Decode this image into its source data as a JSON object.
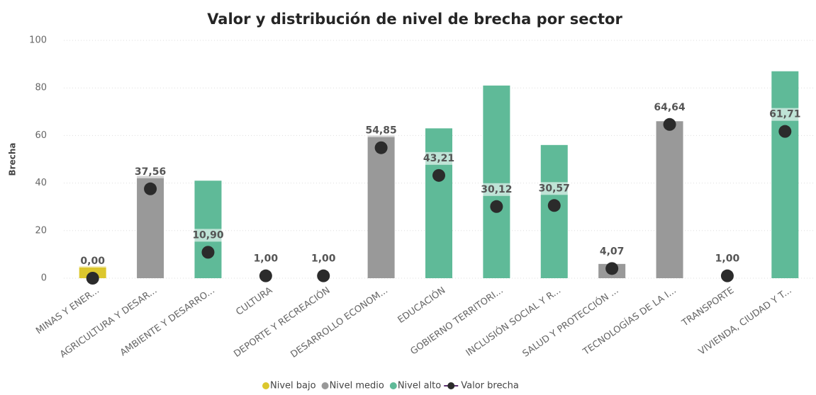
{
  "chart_data": {
    "type": "bar",
    "title": "Valor y distribución de nivel de brecha por sector",
    "y_label": "Brecha",
    "categories": [
      "MINAS Y ENER...",
      "AGRICULTURA Y DESAR...",
      "AMBIENTE Y DESARRO...",
      "CULTURA",
      "DEPORTE Y RECREACIÓN",
      "DESARROLLO ECONOM...",
      "EDUCACIÓN",
      "GOBIERNO TERRITORI...",
      "INCLUSIÓN SOCIAL Y R...",
      "SALUD Y PROTECCIÓN ...",
      "TECNOLOGÍAS DE LA I...",
      "TRANSPORTE",
      "VIVIENDA, CIUDAD Y T..."
    ],
    "series": [
      {
        "name": "Nivel bajo",
        "color": "#dcc72d",
        "values": [
          5,
          null,
          null,
          null,
          null,
          null,
          null,
          null,
          null,
          null,
          null,
          null,
          null
        ]
      },
      {
        "name": "Nivel medio",
        "color": "#999999",
        "values": [
          null,
          43,
          null,
          null,
          null,
          60,
          null,
          null,
          null,
          6,
          66,
          null,
          null
        ]
      },
      {
        "name": "Nivel alto",
        "color": "#5fba98",
        "values": [
          null,
          null,
          41,
          null,
          null,
          null,
          63,
          81,
          56,
          null,
          null,
          null,
          87
        ]
      },
      {
        "name": "Valor brecha",
        "type": "scatter",
        "color": "#2b2b2b",
        "line_color": "#5a2d6e",
        "values": [
          0,
          37.56,
          10.9,
          1,
          1,
          54.85,
          43.21,
          30.12,
          30.57,
          4.07,
          64.64,
          1,
          61.71
        ],
        "value_labels": [
          "0,00",
          "37,56",
          "10,90",
          "1,00",
          "1,00",
          "54,85",
          "43,21",
          "30,12",
          "30,57",
          "4,07",
          "64,64",
          "1,00",
          "61,71"
        ]
      }
    ],
    "ylim": [
      0,
      100
    ],
    "yticks": [
      0,
      20,
      40,
      60,
      80,
      100
    ],
    "grid": true,
    "legend": "bottom"
  }
}
